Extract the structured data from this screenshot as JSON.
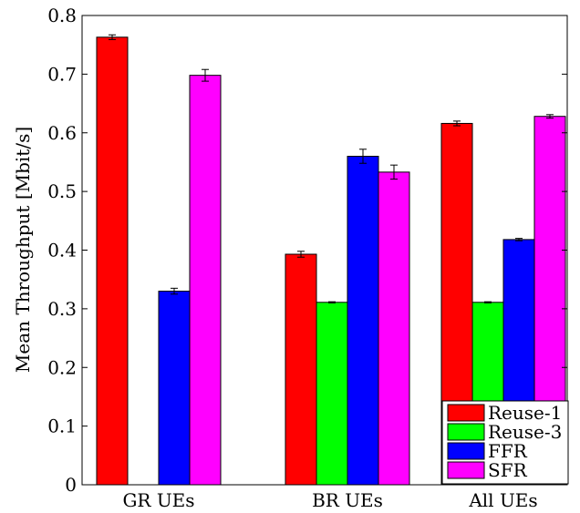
{
  "chart_data": {
    "type": "bar",
    "title": "",
    "xlabel": "",
    "ylabel": "Mean Throughput [Mbit/s]",
    "ylim": [
      0,
      0.8
    ],
    "yticks": [
      "0",
      "0.1",
      "0.2",
      "0.3",
      "0.4",
      "0.5",
      "0.6",
      "0.7",
      "0.8"
    ],
    "categories": [
      "GR UEs",
      "BR UEs",
      "All UEs"
    ],
    "legend_position": "bottom-right",
    "grid": false,
    "series": [
      {
        "name": "Reuse-1",
        "color": "#ff0000",
        "values": [
          0.763,
          0.393,
          0.616
        ],
        "errors": [
          0.004,
          0.005,
          0.004
        ]
      },
      {
        "name": "Reuse-3",
        "color": "#00ff00",
        "values": [
          0,
          0.311,
          0.311
        ],
        "errors": [
          0,
          0.001,
          0.001
        ]
      },
      {
        "name": "FFR",
        "color": "#0000ff",
        "values": [
          0.33,
          0.56,
          0.418
        ],
        "errors": [
          0.005,
          0.012,
          0.002
        ]
      },
      {
        "name": "SFR",
        "color": "#ff00ff",
        "values": [
          0.698,
          0.533,
          0.628
        ],
        "errors": [
          0.01,
          0.012,
          0.003
        ]
      }
    ]
  }
}
